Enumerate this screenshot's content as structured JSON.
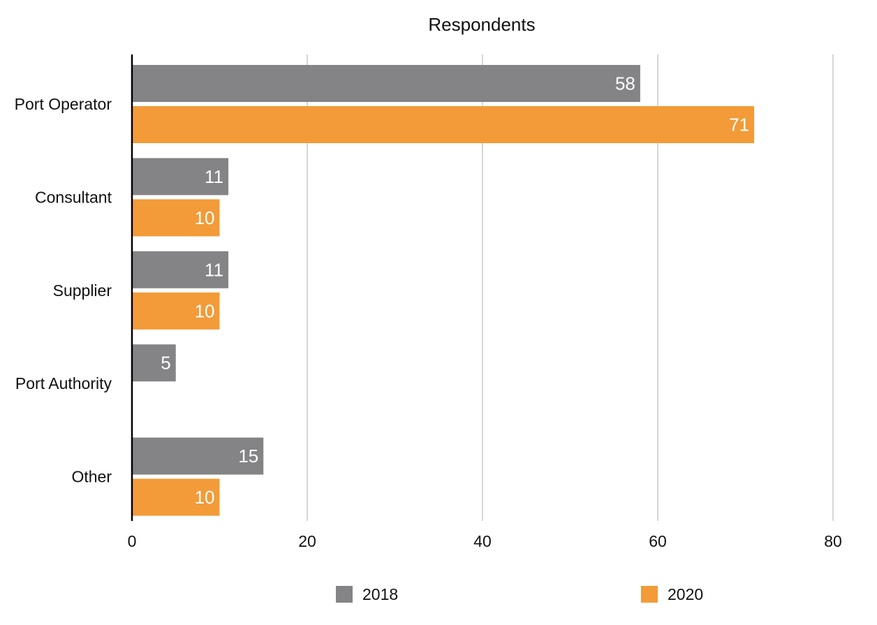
{
  "chart_data": {
    "type": "bar",
    "orientation": "horizontal",
    "title": "Respondents",
    "xlabel": "",
    "ylabel": "",
    "categories": [
      "Port Operator",
      "Consultant",
      "Supplier",
      "Port Authority",
      "Other"
    ],
    "series": [
      {
        "name": "2018",
        "color": "#848487",
        "values": [
          58,
          11,
          11,
          5,
          15
        ]
      },
      {
        "name": "2020",
        "color": "#F29B38",
        "values": [
          71,
          10,
          10,
          null,
          10
        ]
      }
    ],
    "xlim": [
      0,
      80
    ],
    "xticks": [
      0,
      20,
      40,
      60,
      80
    ],
    "grid": "vertical",
    "legend": "bottom",
    "data_labels": true
  }
}
